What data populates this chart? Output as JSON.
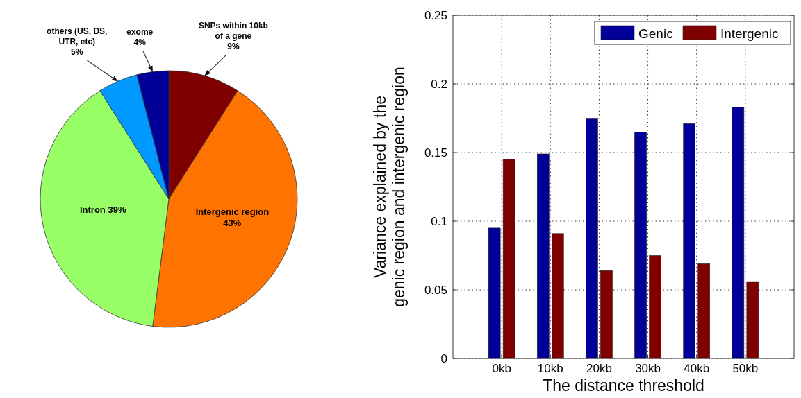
{
  "chart_data": [
    {
      "type": "pie",
      "categories": [
        "SNPs within 10kb of a gene",
        "Intergenic region",
        "Intron",
        "others (US, DS, UTR, etc)",
        "exome"
      ],
      "values": [
        9,
        43,
        39,
        5,
        4
      ],
      "colors": [
        "#800000",
        "#ff7300",
        "#99ff66",
        "#0099ff",
        "#000099"
      ],
      "value_labels": [
        "9%",
        "43%",
        "39%",
        "5%",
        "4%"
      ]
    },
    {
      "type": "bar",
      "categories": [
        "0kb",
        "10kb",
        "20kb",
        "30kb",
        "40kb",
        "50kb"
      ],
      "xlabel": "The distance threshold",
      "ylabel": "Variance explained by the genic region and intergenic region",
      "ylim": [
        0,
        0.25
      ],
      "yticks": [
        0,
        0.05,
        0.1,
        0.15,
        0.2,
        0.25
      ],
      "grid": true,
      "legend": "top right",
      "series": [
        {
          "name": "Genic",
          "color": "#000099",
          "values": [
            0.095,
            0.149,
            0.175,
            0.165,
            0.171,
            0.183
          ]
        },
        {
          "name": "Intergenic",
          "color": "#800000",
          "values": [
            0.145,
            0.091,
            0.064,
            0.075,
            0.069,
            0.056
          ]
        }
      ]
    }
  ]
}
